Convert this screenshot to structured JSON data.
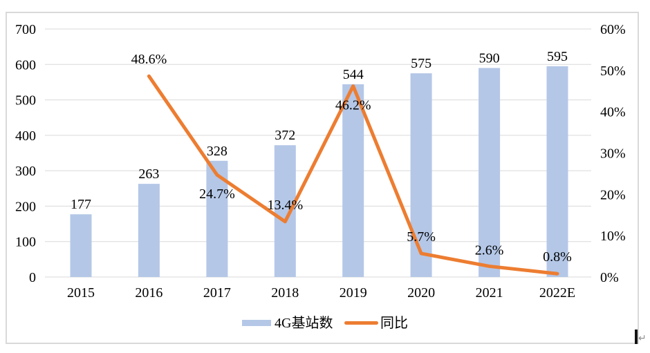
{
  "chart_data": {
    "type": "bar",
    "subtype": "combo-bar-line",
    "categories": [
      "2015",
      "2016",
      "2017",
      "2018",
      "2019",
      "2020",
      "2021",
      "2022E"
    ],
    "series": [
      {
        "name": "4G基站数",
        "type": "bar",
        "axis": "left",
        "values": [
          177,
          263,
          328,
          372,
          544,
          575,
          590,
          595
        ],
        "labels": [
          "177",
          "263",
          "328",
          "372",
          "544",
          "575",
          "590",
          "595"
        ],
        "color": "#B4C7E7"
      },
      {
        "name": "同比",
        "type": "line",
        "axis": "right",
        "values": [
          null,
          48.6,
          24.7,
          13.4,
          46.2,
          5.7,
          2.6,
          0.8
        ],
        "labels": [
          "",
          "48.6%",
          "24.7%",
          "13.4%",
          "46.2%",
          "5.7%",
          "2.6%",
          "0.8%"
        ],
        "label_dy": [
          null,
          -18,
          34,
          -18,
          34,
          -18,
          -17,
          -18
        ],
        "color": "#ED7D31"
      }
    ],
    "left_axis": {
      "min": 0,
      "max": 700,
      "ticks": [
        "700",
        "600",
        "500",
        "400",
        "300",
        "200",
        "100",
        "0"
      ]
    },
    "right_axis": {
      "min": 0,
      "max": 60,
      "ticks": [
        "60%",
        "50%",
        "40%",
        "30%",
        "20%",
        "10%",
        "0%"
      ]
    },
    "grid": true,
    "legend_position": "bottom",
    "title": "",
    "xlabel": "",
    "ylabel": ""
  },
  "colors": {
    "bar": "#B4C7E7",
    "line": "#ED7D31",
    "gridline": "#D9D9D9",
    "frame_border": "#D9D9D9",
    "text": "#000000",
    "cursor": "#141414",
    "return_mark": "#8F8F8F"
  },
  "cursor": {
    "return_mark": "↵"
  }
}
